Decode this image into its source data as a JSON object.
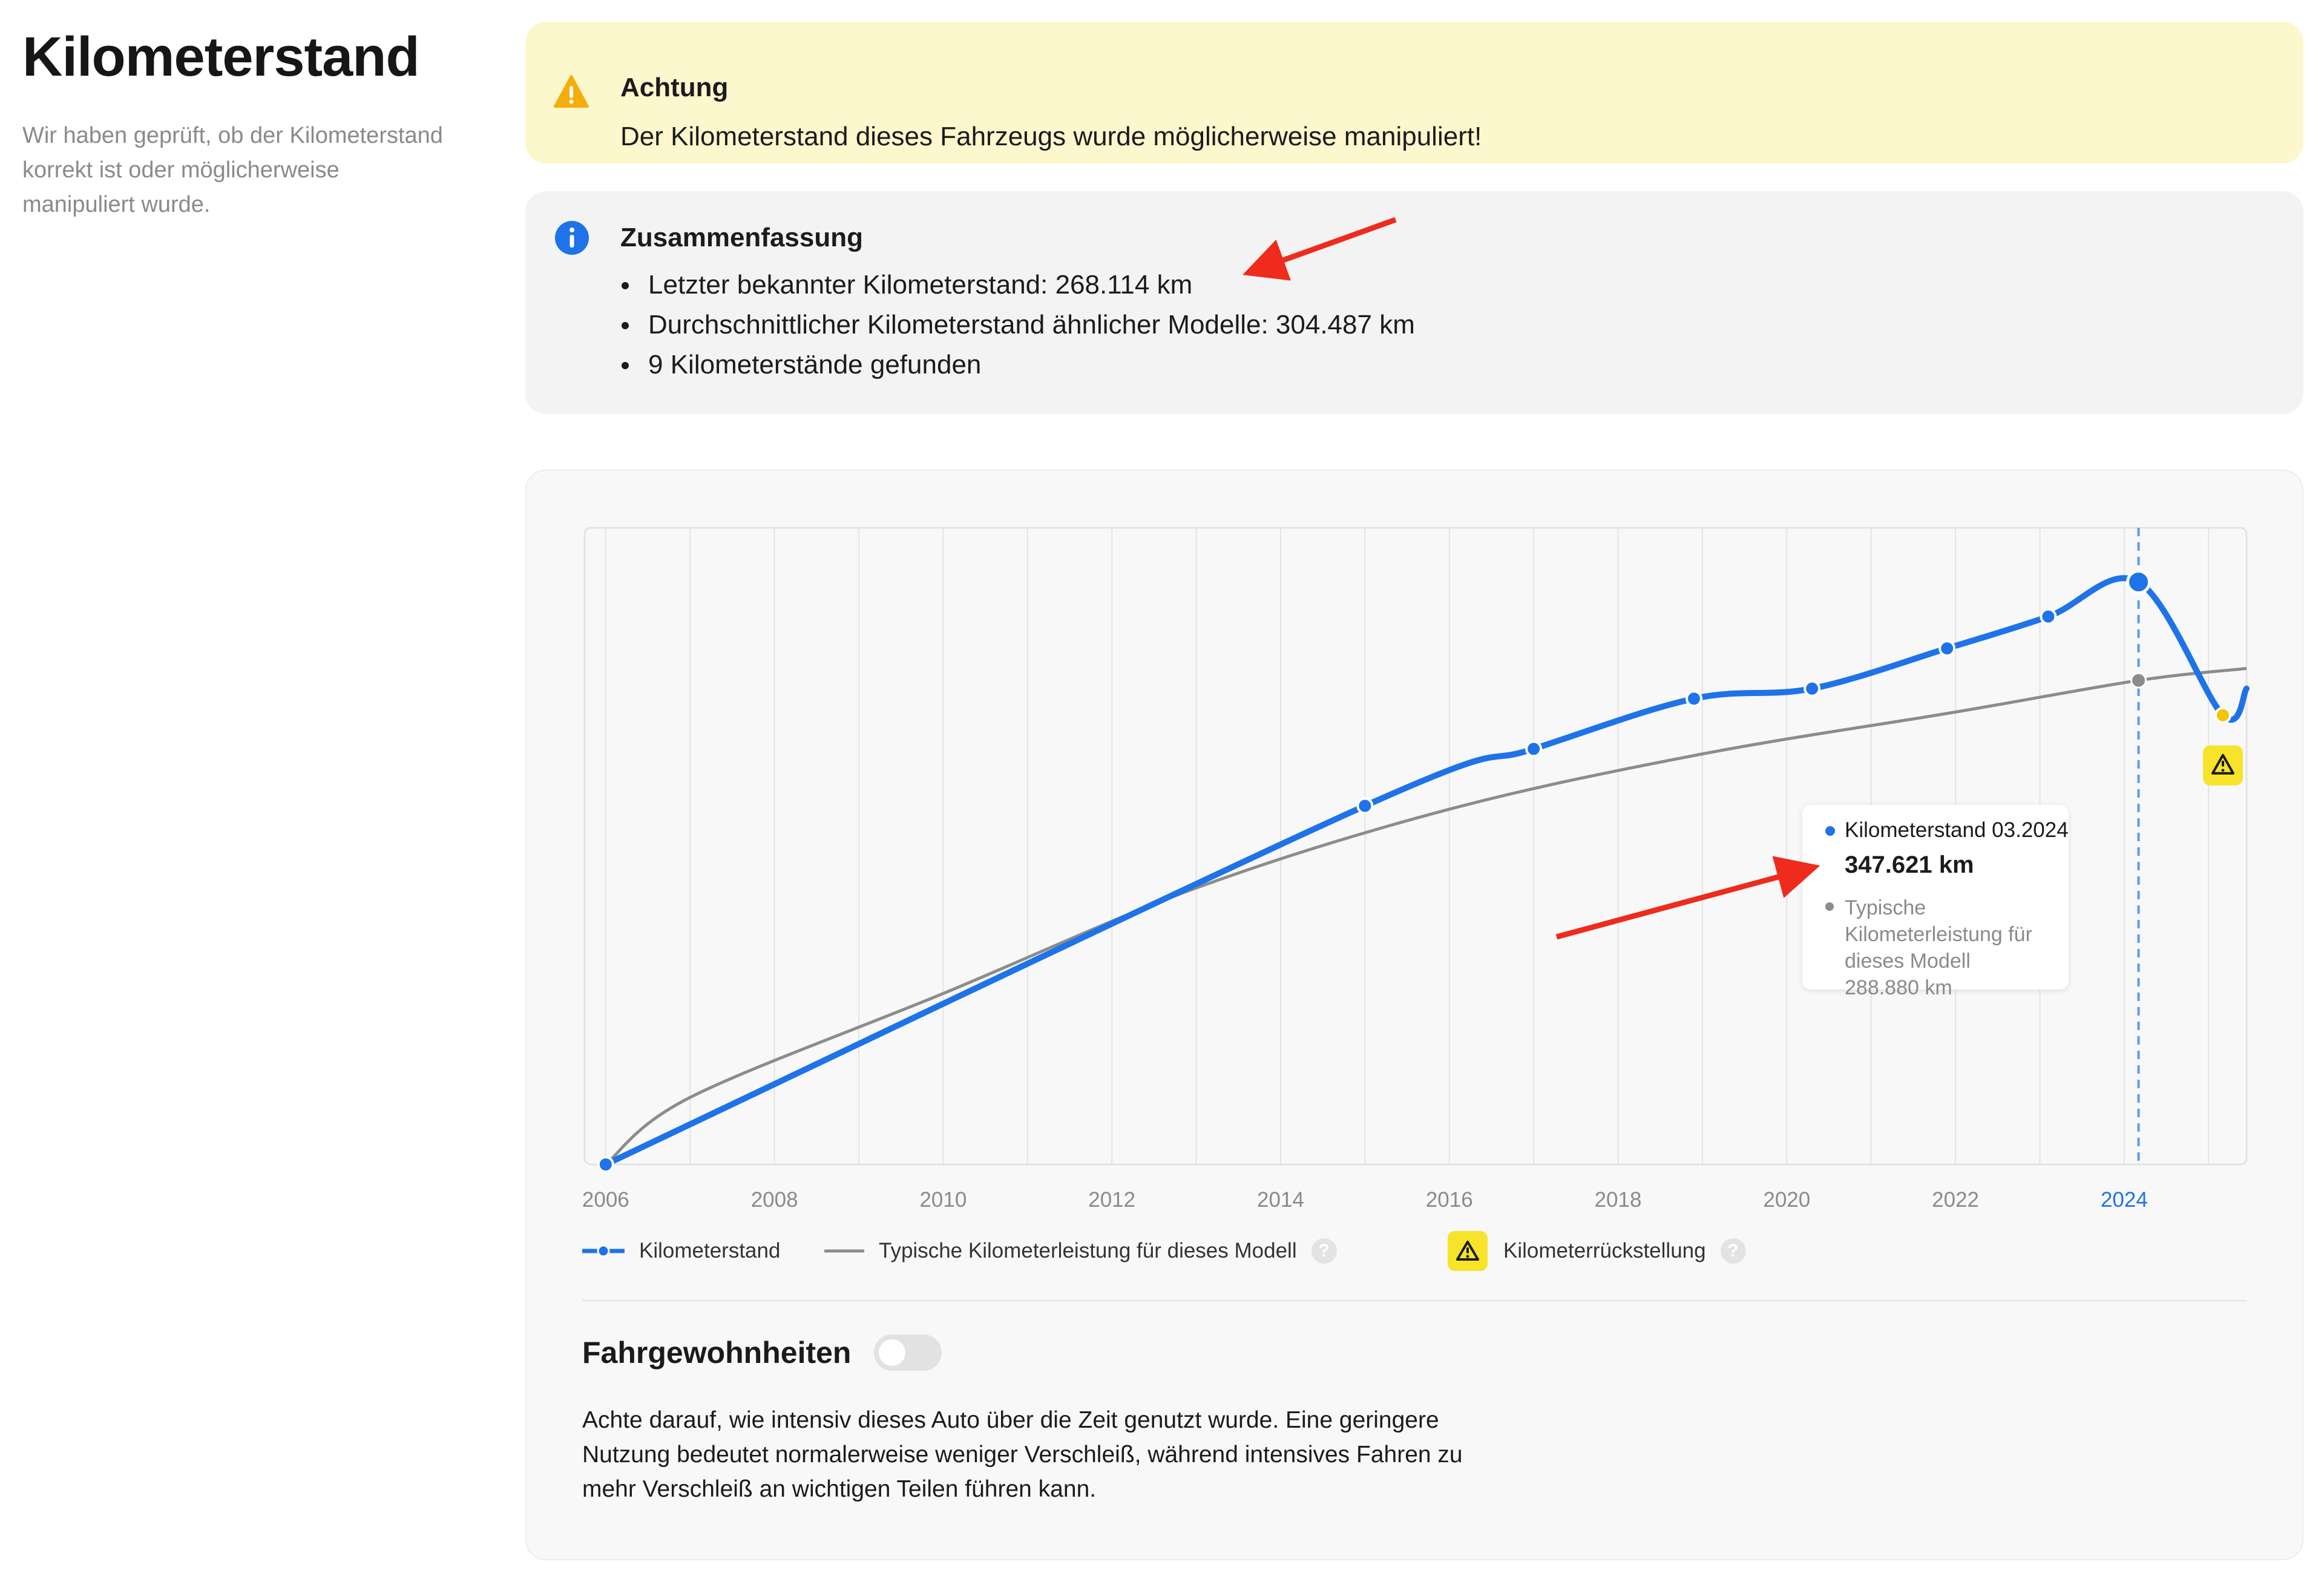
{
  "page": {
    "title": "Kilometerstand",
    "subtitle": "Wir haben geprüft, ob der Kilometerstand korrekt ist oder möglicherweise manipuliert wurde."
  },
  "alert": {
    "title": "Achtung",
    "text": "Der Kilometerstand dieses Fahrzeugs wurde möglicherweise manipuliert!",
    "icon": "warning-triangle-icon",
    "color": "#f5ad0b"
  },
  "summary": {
    "title": "Zusammenfassung",
    "icon": "info-icon",
    "items": [
      "Letzter bekannter Kilometerstand: 268.114 km",
      "Durchschnittlicher Kilometerstand ähnlicher Modelle: 304.487 km",
      "9 Kilometerstände gefunden"
    ]
  },
  "chart_data": {
    "type": "line",
    "x_tick_labels": [
      "2006",
      "2008",
      "2010",
      "2012",
      "2014",
      "2016",
      "2018",
      "2020",
      "2022",
      "2024"
    ],
    "highlighted_tick": "2024",
    "xlim": [
      2005.75,
      2025.45
    ],
    "ylim": [
      0,
      380000
    ],
    "grid": "vertical",
    "series": [
      {
        "name": "Kilometerstand",
        "color": "#1e73e8",
        "points": [
          {
            "x": 2006.0,
            "y": 0
          },
          {
            "x": 2015.0,
            "y": 214000
          },
          {
            "x": 2017.0,
            "y": 248000
          },
          {
            "x": 2018.9,
            "y": 278000
          },
          {
            "x": 2020.3,
            "y": 284000
          },
          {
            "x": 2021.9,
            "y": 308000
          },
          {
            "x": 2023.1,
            "y": 327000
          },
          {
            "x": 2024.17,
            "y": 347621
          },
          {
            "x": 2025.17,
            "y": 268114
          }
        ]
      },
      {
        "name": "Typische Kilometerleistung für dieses Modell",
        "color": "#8c8c8c",
        "points": [
          {
            "x": 2006.0,
            "y": 0
          },
          {
            "x": 2007.0,
            "y": 40000
          },
          {
            "x": 2010.0,
            "y": 102000
          },
          {
            "x": 2013.0,
            "y": 165000
          },
          {
            "x": 2016.0,
            "y": 212000
          },
          {
            "x": 2019.0,
            "y": 245000
          },
          {
            "x": 2022.0,
            "y": 270000
          },
          {
            "x": 2024.17,
            "y": 288880
          },
          {
            "x": 2025.45,
            "y": 296000
          }
        ]
      }
    ],
    "rollback_marker": {
      "x": 2025.17,
      "y": 268114,
      "label": "Kilometerrückstellung",
      "color": "#f6e32a"
    },
    "crosshair_x": 2024.17,
    "tooltip": {
      "label": "Kilometerstand 03.2024",
      "value": "347.621 km",
      "secondary_label": "Typische Kilometerleistung für dieses Modell",
      "secondary_value": "288.880 km"
    },
    "legend": [
      {
        "label": "Kilometerstand",
        "style": "line-dot",
        "color": "#1e73e8"
      },
      {
        "label": "Typische Kilometerleistung für dieses Modell",
        "style": "line",
        "color": "#8c8c8c",
        "help": "?"
      },
      {
        "label": "Kilometerrückstellung",
        "style": "warning-badge",
        "color": "#f6e32a",
        "help": "?"
      }
    ]
  },
  "habits": {
    "title": "Fahrgewohnheiten",
    "toggle_on": false,
    "text": "Achte darauf, wie intensiv dieses Auto über die Zeit genutzt wurde. Eine geringere Nutzung bedeutet normalerweise weniger Verschleiß, während intensives Fahren zu mehr Verschleiß an wichtigen Teilen führen kann."
  }
}
